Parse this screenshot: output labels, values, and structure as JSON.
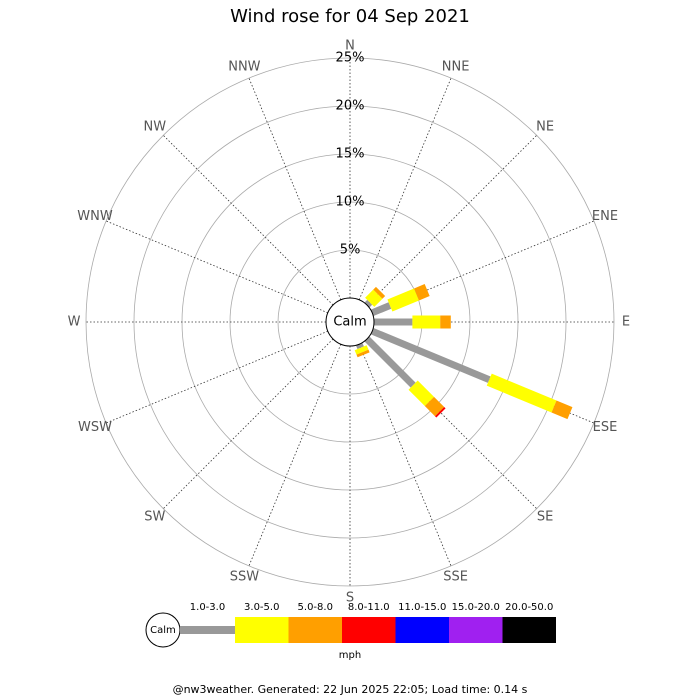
{
  "chart_data": {
    "type": "windrose",
    "title": "Wind rose for 04 Sep 2021",
    "directions": [
      "N",
      "NNE",
      "NE",
      "ENE",
      "E",
      "ESE",
      "SE",
      "SSE",
      "S",
      "SSW",
      "SW",
      "WSW",
      "W",
      "WNW",
      "NW",
      "NNW"
    ],
    "series": [
      {
        "name": "1.0-3.0",
        "color": "#999999",
        "values": [
          0,
          0,
          0.4,
          2.0,
          4.0,
          13.2,
          6.8,
          0.4,
          0,
          0,
          0,
          0,
          0,
          0,
          0,
          0
        ]
      },
      {
        "name": "3.0-5.0",
        "color": "#ffff00",
        "values": [
          0,
          0,
          1.2,
          3.0,
          2.9,
          7.3,
          2.4,
          0.5,
          0,
          0,
          0,
          0,
          0,
          0,
          0,
          0
        ]
      },
      {
        "name": "5.0-8.0",
        "color": "#ff9f00",
        "values": [
          0,
          0,
          0.4,
          1.2,
          1.1,
          1.8,
          1.5,
          0.3,
          0,
          0,
          0,
          0,
          0,
          0,
          0,
          0
        ]
      },
      {
        "name": "8.0-11.0",
        "color": "#ff0000",
        "values": [
          0,
          0,
          0,
          0,
          0,
          0,
          0.2,
          0,
          0,
          0,
          0,
          0,
          0,
          0,
          0,
          0
        ]
      },
      {
        "name": "11.0-15.0",
        "color": "#0000ff",
        "values": [
          0,
          0,
          0,
          0,
          0,
          0,
          0,
          0,
          0,
          0,
          0,
          0,
          0,
          0,
          0,
          0
        ]
      },
      {
        "name": "15.0-20.0",
        "color": "#a020f0",
        "values": [
          0,
          0,
          0,
          0,
          0,
          0,
          0,
          0,
          0,
          0,
          0,
          0,
          0,
          0,
          0,
          0
        ]
      },
      {
        "name": "20.0-50.0",
        "color": "#000000",
        "values": [
          0,
          0,
          0,
          0,
          0,
          0,
          0,
          0,
          0,
          0,
          0,
          0,
          0,
          0,
          0,
          0
        ]
      }
    ],
    "center_label": "Calm",
    "unit": "mph",
    "ylim": [
      0,
      25
    ],
    "yticks": [
      {
        "value": 5,
        "label": "5%"
      },
      {
        "value": 10,
        "label": "10%"
      },
      {
        "value": 15,
        "label": "15%"
      },
      {
        "value": 20,
        "label": "20%"
      },
      {
        "value": 25,
        "label": "25%"
      }
    ],
    "footer": "@nw3weather. Generated: 22 Jun 2025 22:05; Load time: 0.14 s"
  }
}
